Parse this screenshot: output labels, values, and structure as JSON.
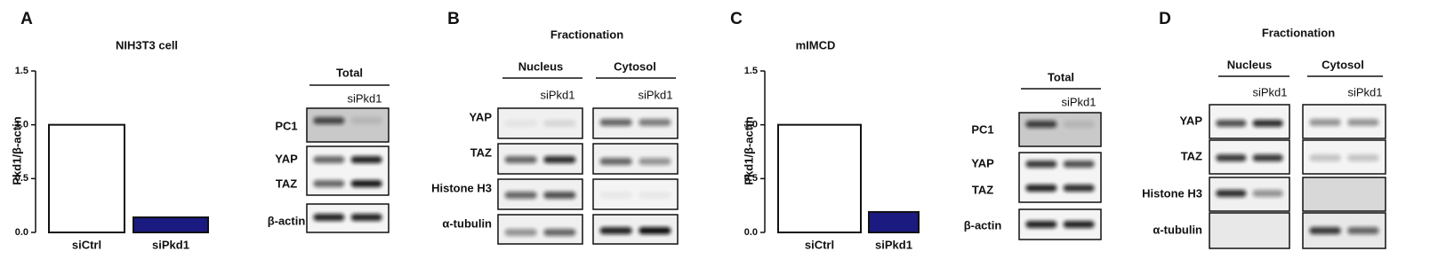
{
  "chart_data": [
    {
      "type": "bar",
      "panel_label": "A",
      "title": "NIH3T3 cell",
      "y_label": "Pkd1/β-actin",
      "categories": [
        "siCtrl",
        "siPkd1"
      ],
      "values": [
        1.0,
        0.14
      ],
      "colors": [
        "#ffffff",
        "#1a1a80"
      ],
      "ylim": [
        0,
        1.5
      ],
      "yticks": [
        {
          "value": 0,
          "label": "0.0"
        },
        {
          "value": 0.5,
          "label": "0.5"
        },
        {
          "value": 1,
          "label": "1.0"
        },
        {
          "value": 1.5,
          "label": "1.5"
        }
      ]
    },
    {
      "type": "bar",
      "panel_label": "C",
      "title": "mIMCD",
      "y_label": "Pkd1/β-actin",
      "categories": [
        "siCtrl",
        "siPkd1"
      ],
      "values": [
        1.0,
        0.19
      ],
      "colors": [
        "#ffffff",
        "#1a1a80"
      ],
      "ylim": [
        0,
        1.5
      ],
      "yticks": [
        {
          "value": 0,
          "label": "0.0"
        },
        {
          "value": 0.5,
          "label": "0.5"
        },
        {
          "value": 1,
          "label": "1.0"
        },
        {
          "value": 1.5,
          "label": "1.5"
        }
      ]
    }
  ],
  "blots": [
    {
      "header": "Total",
      "lane_label": "siPkd1",
      "rows": [
        "PC1",
        "YAP",
        "TAZ",
        "β-actin"
      ]
    },
    {
      "panel_label": "B",
      "title": "Fractionation",
      "groups": [
        {
          "name": "Nucleus",
          "lane_label": "siPkd1"
        },
        {
          "name": "Cytosol",
          "lane_label": "siPkd1"
        }
      ],
      "rows": [
        "YAP",
        "TAZ",
        "Histone H3",
        "α-tubulin"
      ]
    },
    {
      "header": "Total",
      "lane_label": "siPkd1",
      "rows": [
        "PC1",
        "YAP",
        "TAZ",
        "β-actin"
      ]
    },
    {
      "panel_label": "D",
      "title": "Fractionation",
      "groups": [
        {
          "name": "Nucleus",
          "lane_label": "siPkd1"
        },
        {
          "name": "Cytosol",
          "lane_label": "siPkd1"
        }
      ],
      "rows": [
        "YAP",
        "TAZ",
        "Histone H3",
        "α-tubulin"
      ]
    }
  ]
}
